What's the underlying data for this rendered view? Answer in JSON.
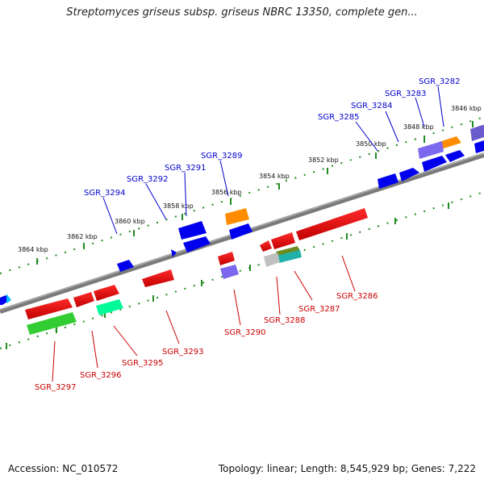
{
  "title": "Streptomyces griseus subsp. griseus NBRC 13350, complete gen...",
  "footer": {
    "accession": "Accession: NC_010572",
    "summary": "Topology: linear; Length: 8,545,929 bp; Genes: 7,222"
  },
  "colors": {
    "forward_label": "#0000cc",
    "reverse_label": "#cc0000",
    "backbone": "#888888",
    "tick": "#228b22"
  },
  "kbp_labels": [
    "3846 kbp",
    "3848 kbp",
    "3850 kbp",
    "3852 kbp",
    "3854 kbp",
    "3856 kbp",
    "3858 kbp",
    "3860 kbp",
    "3862 kbp",
    "3864 kbp"
  ],
  "forward_genes": [
    "SGR_3282",
    "SGR_3283",
    "SGR_3284",
    "SGR_3285",
    "SGR_3289",
    "SGR_3291",
    "SGR_3292",
    "SGR_3294"
  ],
  "reverse_genes": [
    "SGR_3286",
    "SGR_3287",
    "SGR_3288",
    "SGR_3290",
    "SGR_3293",
    "SGR_3295",
    "SGR_3296",
    "SGR_3297"
  ]
}
